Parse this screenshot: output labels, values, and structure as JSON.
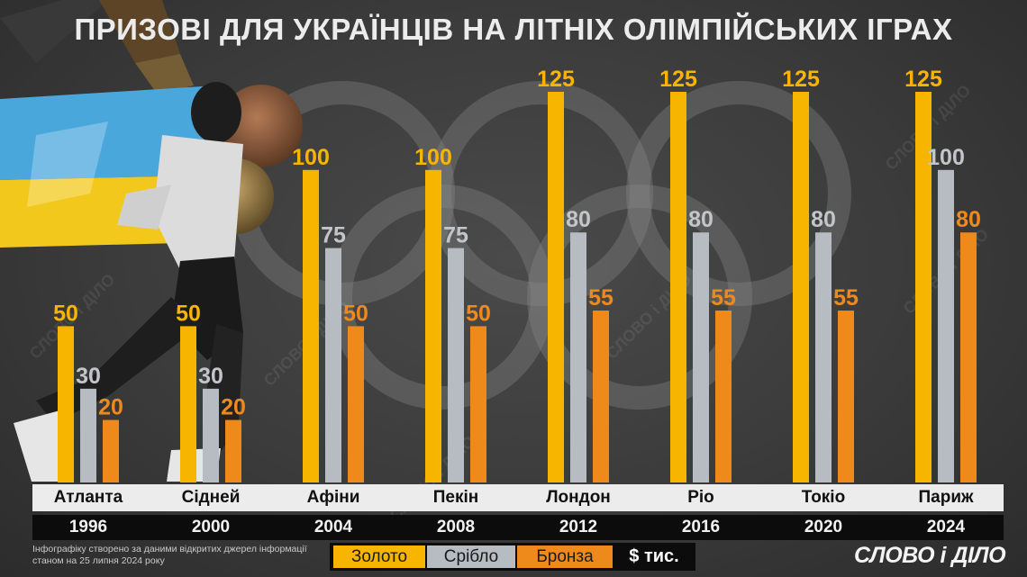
{
  "title": "ПРИЗОВІ ДЛЯ УКРАЇНЦІВ НА ЛІТНІХ ОЛІМПІЙСЬКИХ ІГРАХ",
  "chart_data": {
    "type": "bar",
    "title": "ПРИЗОВІ ДЛЯ УКРАЇНЦІВ НА ЛІТНІХ ОЛІМПІЙСЬКИХ ІГРАХ",
    "categories": [
      "Атланта",
      "Сідней",
      "Афіни",
      "Пекін",
      "Лондон",
      "Ріо",
      "Токіо",
      "Париж"
    ],
    "years": [
      "1996",
      "2000",
      "2004",
      "2008",
      "2012",
      "2016",
      "2020",
      "2024"
    ],
    "series": [
      {
        "name": "Золото",
        "color": "#f7b500",
        "values": [
          50,
          50,
          100,
          100,
          125,
          125,
          125,
          125
        ]
      },
      {
        "name": "Срібло",
        "color": "#b6bcc1",
        "values": [
          30,
          30,
          75,
          75,
          80,
          80,
          80,
          100
        ]
      },
      {
        "name": "Бронза",
        "color": "#ee8a1c",
        "values": [
          20,
          20,
          50,
          50,
          55,
          55,
          55,
          80
        ]
      }
    ],
    "unit": "$ тис.",
    "ylim": [
      0,
      125
    ],
    "grid": false,
    "legend_position": "bottom"
  },
  "legend": {
    "gold": "Золото",
    "silver": "Срібло",
    "bronze": "Бронза",
    "unit": "$ тис."
  },
  "footnote": "Інфографіку створено за даними відкритих джерел інформації станом на 25 липня 2024 року",
  "logo": "СЛОВО і ДІЛО",
  "watermark": "СЛОВО і ДІЛО"
}
